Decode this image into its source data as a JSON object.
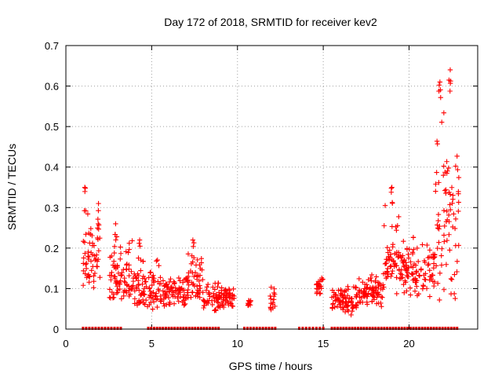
{
  "chart_data": {
    "type": "scatter",
    "title": "Day 172 of 2018, SRMTID for receiver kev2",
    "xlabel": "GPS time / hours",
    "ylabel": "SRMTID / TECUs",
    "xlim": [
      0,
      24
    ],
    "ylim": [
      0,
      0.7
    ],
    "xticks": [
      0,
      5,
      10,
      15,
      20
    ],
    "yticks": [
      0,
      0.1,
      0.2,
      0.3,
      0.4,
      0.5,
      0.6,
      0.7
    ],
    "xtick_labels": [
      "0",
      "5",
      "10",
      "15",
      "20"
    ],
    "ytick_labels": [
      "0",
      "0.1",
      "0.2",
      "0.3",
      "0.4",
      "0.5",
      "0.6",
      "0.7"
    ],
    "grid": true,
    "marker": "plus",
    "series_color": "#ff0000",
    "series": [
      {
        "name": "SRMTID",
        "segments": [
          {
            "x_start": 1.0,
            "x_end": 2.0,
            "y_low": 0.07,
            "y_high": 0.35
          },
          {
            "x_start": 2.5,
            "x_end": 4.0,
            "y_low": 0.05,
            "y_high": 0.26
          },
          {
            "x_start": 4.0,
            "x_end": 5.5,
            "y_low": 0.03,
            "y_high": 0.22
          },
          {
            "x_start": 5.5,
            "x_end": 7.0,
            "y_low": 0.05,
            "y_high": 0.15
          },
          {
            "x_start": 7.0,
            "x_end": 8.0,
            "y_low": 0.06,
            "y_high": 0.22
          },
          {
            "x_start": 8.0,
            "x_end": 9.8,
            "y_low": 0.04,
            "y_high": 0.14
          },
          {
            "x_start": 10.6,
            "x_end": 10.8,
            "y_low": 0.05,
            "y_high": 0.08
          },
          {
            "x_start": 11.9,
            "x_end": 12.2,
            "y_low": 0.04,
            "y_high": 0.12
          },
          {
            "x_start": 14.6,
            "x_end": 15.0,
            "y_low": 0.08,
            "y_high": 0.14
          },
          {
            "x_start": 15.5,
            "x_end": 17.0,
            "y_low": 0.03,
            "y_high": 0.13
          },
          {
            "x_start": 17.0,
            "x_end": 18.5,
            "y_low": 0.05,
            "y_high": 0.16
          },
          {
            "x_start": 18.5,
            "x_end": 19.5,
            "y_low": 0.07,
            "y_high": 0.35
          },
          {
            "x_start": 19.5,
            "x_end": 21.0,
            "y_low": 0.06,
            "y_high": 0.29
          },
          {
            "x_start": 21.0,
            "x_end": 21.5,
            "y_low": 0.05,
            "y_high": 0.3
          },
          {
            "x_start": 21.5,
            "x_end": 22.9,
            "y_low": 0.04,
            "y_high": 0.64
          }
        ],
        "peaks": [
          {
            "x": 1.1,
            "y": 0.35
          },
          {
            "x": 1.9,
            "y": 0.31
          },
          {
            "x": 2.9,
            "y": 0.26
          },
          {
            "x": 4.3,
            "y": 0.22
          },
          {
            "x": 7.4,
            "y": 0.22
          },
          {
            "x": 19.0,
            "y": 0.35
          },
          {
            "x": 21.8,
            "y": 0.61
          },
          {
            "x": 22.4,
            "y": 0.64
          }
        ],
        "zero_runs": [
          {
            "x_start": 1.0,
            "x_end": 3.2
          },
          {
            "x_start": 4.8,
            "x_end": 8.9
          },
          {
            "x_start": 10.4,
            "x_end": 12.2
          },
          {
            "x_start": 13.6,
            "x_end": 15.0
          },
          {
            "x_start": 15.5,
            "x_end": 22.8
          }
        ]
      }
    ]
  }
}
